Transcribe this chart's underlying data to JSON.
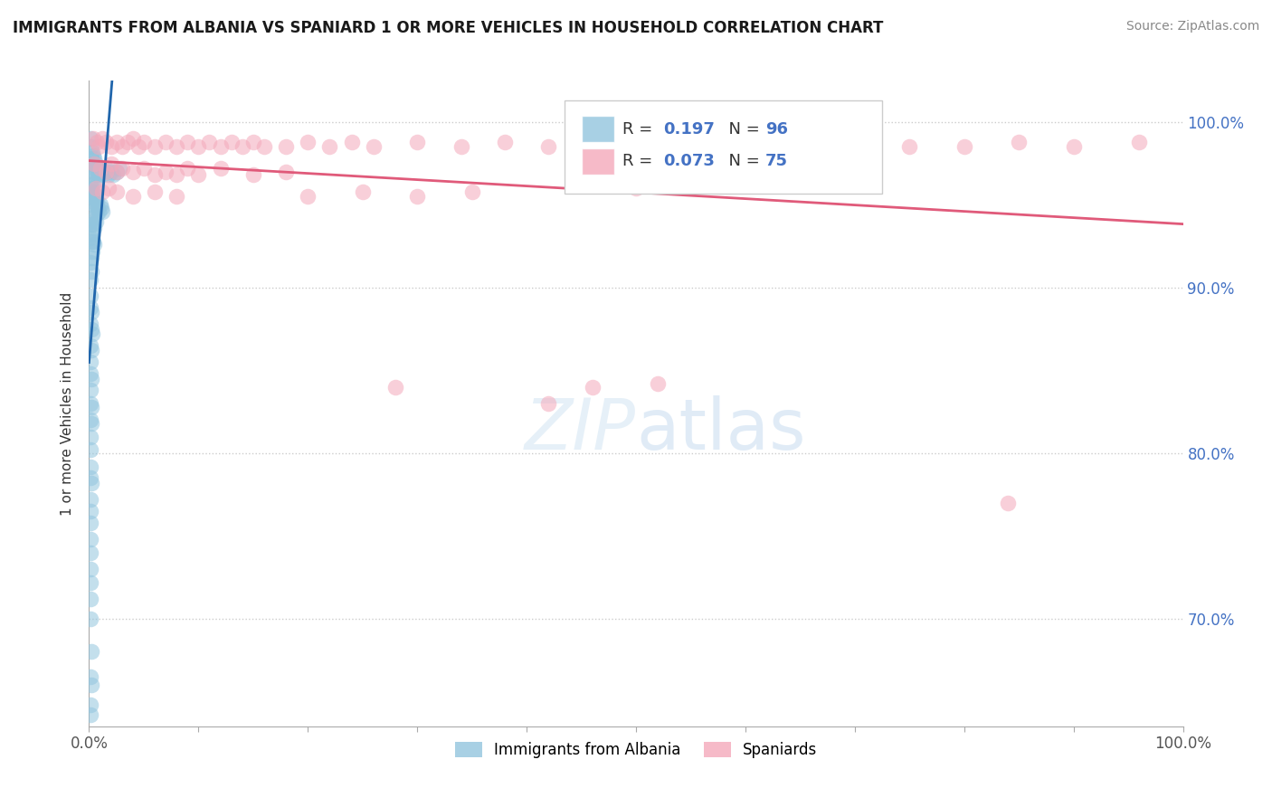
{
  "title": "IMMIGRANTS FROM ALBANIA VS SPANIARD 1 OR MORE VEHICLES IN HOUSEHOLD CORRELATION CHART",
  "source": "Source: ZipAtlas.com",
  "ylabel": "1 or more Vehicles in Household",
  "legend_labels": [
    "Immigrants from Albania",
    "Spaniards"
  ],
  "albania_R": 0.197,
  "albania_N": 96,
  "spaniard_R": 0.073,
  "spaniard_N": 75,
  "albania_color": "#92c5de",
  "spaniard_color": "#f4a9bb",
  "albania_line_color": "#2166ac",
  "spaniard_line_color": "#e05a7a",
  "background_color": "#ffffff",
  "xlim": [
    0.0,
    1.0
  ],
  "ylim": [
    0.635,
    1.025
  ],
  "ytick_vals": [
    0.7,
    0.8,
    0.9,
    1.0
  ],
  "ytick_labels": [
    "70.0%",
    "80.0%",
    "90.0%",
    "100.0%"
  ],
  "albania_points": [
    [
      0.001,
      0.99
    ],
    [
      0.002,
      0.985
    ],
    [
      0.002,
      0.978
    ],
    [
      0.003,
      0.982
    ],
    [
      0.003,
      0.975
    ],
    [
      0.004,
      0.98
    ],
    [
      0.004,
      0.972
    ],
    [
      0.005,
      0.978
    ],
    [
      0.005,
      0.97
    ],
    [
      0.006,
      0.975
    ],
    [
      0.006,
      0.968
    ],
    [
      0.007,
      0.973
    ],
    [
      0.007,
      0.965
    ],
    [
      0.008,
      0.97
    ],
    [
      0.009,
      0.968
    ],
    [
      0.01,
      0.972
    ],
    [
      0.011,
      0.97
    ],
    [
      0.012,
      0.968
    ],
    [
      0.013,
      0.97
    ],
    [
      0.015,
      0.972
    ],
    [
      0.016,
      0.97
    ],
    [
      0.018,
      0.968
    ],
    [
      0.02,
      0.97
    ],
    [
      0.022,
      0.968
    ],
    [
      0.025,
      0.97
    ],
    [
      0.028,
      0.972
    ],
    [
      0.001,
      0.963
    ],
    [
      0.002,
      0.96
    ],
    [
      0.002,
      0.958
    ],
    [
      0.003,
      0.962
    ],
    [
      0.003,
      0.955
    ],
    [
      0.004,
      0.958
    ],
    [
      0.004,
      0.952
    ],
    [
      0.005,
      0.956
    ],
    [
      0.005,
      0.95
    ],
    [
      0.006,
      0.953
    ],
    [
      0.006,
      0.948
    ],
    [
      0.007,
      0.952
    ],
    [
      0.007,
      0.945
    ],
    [
      0.008,
      0.948
    ],
    [
      0.009,
      0.946
    ],
    [
      0.01,
      0.95
    ],
    [
      0.011,
      0.948
    ],
    [
      0.012,
      0.946
    ],
    [
      0.001,
      0.94
    ],
    [
      0.002,
      0.938
    ],
    [
      0.003,
      0.942
    ],
    [
      0.004,
      0.938
    ],
    [
      0.005,
      0.936
    ],
    [
      0.006,
      0.94
    ],
    [
      0.001,
      0.93
    ],
    [
      0.002,
      0.928
    ],
    [
      0.003,
      0.932
    ],
    [
      0.004,
      0.928
    ],
    [
      0.005,
      0.926
    ],
    [
      0.002,
      0.918
    ],
    [
      0.003,
      0.922
    ],
    [
      0.001,
      0.915
    ],
    [
      0.002,
      0.91
    ],
    [
      0.001,
      0.905
    ],
    [
      0.001,
      0.895
    ],
    [
      0.001,
      0.888
    ],
    [
      0.002,
      0.885
    ],
    [
      0.001,
      0.878
    ],
    [
      0.002,
      0.875
    ],
    [
      0.003,
      0.872
    ],
    [
      0.001,
      0.865
    ],
    [
      0.002,
      0.862
    ],
    [
      0.001,
      0.855
    ],
    [
      0.001,
      0.848
    ],
    [
      0.002,
      0.845
    ],
    [
      0.001,
      0.838
    ],
    [
      0.001,
      0.83
    ],
    [
      0.002,
      0.828
    ],
    [
      0.001,
      0.82
    ],
    [
      0.002,
      0.818
    ],
    [
      0.001,
      0.81
    ],
    [
      0.001,
      0.802
    ],
    [
      0.001,
      0.792
    ],
    [
      0.001,
      0.785
    ],
    [
      0.002,
      0.782
    ],
    [
      0.001,
      0.772
    ],
    [
      0.001,
      0.765
    ],
    [
      0.001,
      0.758
    ],
    [
      0.001,
      0.748
    ],
    [
      0.001,
      0.74
    ],
    [
      0.001,
      0.73
    ],
    [
      0.001,
      0.722
    ],
    [
      0.001,
      0.712
    ],
    [
      0.001,
      0.7
    ],
    [
      0.002,
      0.68
    ],
    [
      0.001,
      0.665
    ],
    [
      0.002,
      0.66
    ],
    [
      0.001,
      0.648
    ],
    [
      0.001,
      0.642
    ]
  ],
  "spaniard_points": [
    [
      0.004,
      0.99
    ],
    [
      0.007,
      0.988
    ],
    [
      0.009,
      0.985
    ],
    [
      0.012,
      0.99
    ],
    [
      0.015,
      0.988
    ],
    [
      0.02,
      0.985
    ],
    [
      0.025,
      0.988
    ],
    [
      0.03,
      0.985
    ],
    [
      0.035,
      0.988
    ],
    [
      0.04,
      0.99
    ],
    [
      0.045,
      0.985
    ],
    [
      0.05,
      0.988
    ],
    [
      0.06,
      0.985
    ],
    [
      0.07,
      0.988
    ],
    [
      0.08,
      0.985
    ],
    [
      0.09,
      0.988
    ],
    [
      0.1,
      0.985
    ],
    [
      0.11,
      0.988
    ],
    [
      0.12,
      0.985
    ],
    [
      0.13,
      0.988
    ],
    [
      0.14,
      0.985
    ],
    [
      0.15,
      0.988
    ],
    [
      0.16,
      0.985
    ],
    [
      0.18,
      0.985
    ],
    [
      0.2,
      0.988
    ],
    [
      0.22,
      0.985
    ],
    [
      0.24,
      0.988
    ],
    [
      0.26,
      0.985
    ],
    [
      0.3,
      0.988
    ],
    [
      0.34,
      0.985
    ],
    [
      0.38,
      0.988
    ],
    [
      0.42,
      0.985
    ],
    [
      0.46,
      0.988
    ],
    [
      0.5,
      0.985
    ],
    [
      0.55,
      0.988
    ],
    [
      0.6,
      0.985
    ],
    [
      0.65,
      0.988
    ],
    [
      0.7,
      0.985
    ],
    [
      0.75,
      0.985
    ],
    [
      0.8,
      0.985
    ],
    [
      0.85,
      0.988
    ],
    [
      0.9,
      0.985
    ],
    [
      0.96,
      0.988
    ],
    [
      0.005,
      0.975
    ],
    [
      0.01,
      0.972
    ],
    [
      0.015,
      0.97
    ],
    [
      0.02,
      0.975
    ],
    [
      0.025,
      0.97
    ],
    [
      0.03,
      0.972
    ],
    [
      0.04,
      0.97
    ],
    [
      0.05,
      0.972
    ],
    [
      0.06,
      0.968
    ],
    [
      0.07,
      0.97
    ],
    [
      0.08,
      0.968
    ],
    [
      0.09,
      0.972
    ],
    [
      0.1,
      0.968
    ],
    [
      0.12,
      0.972
    ],
    [
      0.15,
      0.968
    ],
    [
      0.18,
      0.97
    ],
    [
      0.2,
      0.955
    ],
    [
      0.25,
      0.958
    ],
    [
      0.3,
      0.955
    ],
    [
      0.35,
      0.958
    ],
    [
      0.006,
      0.96
    ],
    [
      0.012,
      0.958
    ],
    [
      0.018,
      0.96
    ],
    [
      0.025,
      0.958
    ],
    [
      0.04,
      0.955
    ],
    [
      0.06,
      0.958
    ],
    [
      0.08,
      0.955
    ],
    [
      0.28,
      0.84
    ],
    [
      0.46,
      0.84
    ],
    [
      0.52,
      0.842
    ],
    [
      0.84,
      0.77
    ],
    [
      0.5,
      0.96
    ],
    [
      0.42,
      0.83
    ]
  ]
}
